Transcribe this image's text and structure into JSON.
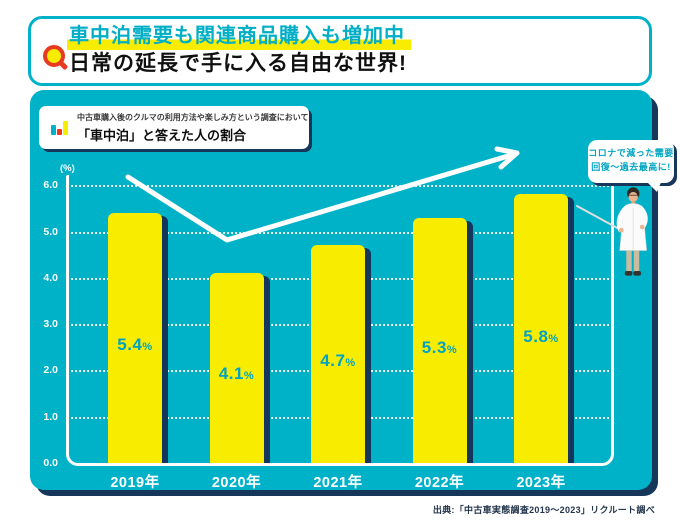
{
  "header": {
    "title_line1": "車中泊需要も関連商品購入も増加中",
    "title_line2": "日常の延長で手に入る自由な世界!",
    "accent_color": "#00b2c8",
    "highlight_color": "#f8ec00",
    "icon": "magnifier-icon"
  },
  "survey_note": {
    "icon": "mini-bar-chart-icon",
    "line1": "中古車購入後のクルマの利用方法や楽しみ方という調査において",
    "line2": "「車中泊」と答えた人の割合"
  },
  "callout": {
    "line1": "コロナで減った需要",
    "line2": "回復〜過去最高に!"
  },
  "source": "出典:「中古車実態調査2019〜2023」リクルート調べ",
  "chart_data": {
    "type": "bar",
    "title": "「車中泊」と答えた人の割合",
    "categories": [
      "2019年",
      "2020年",
      "2021年",
      "2022年",
      "2023年"
    ],
    "values": [
      5.4,
      4.1,
      4.7,
      5.3,
      5.8
    ],
    "unit": "%",
    "y_axis_unit_label": "(%)",
    "y_ticks": [
      "6.0",
      "5.0",
      "4.0",
      "3.0",
      "2.0",
      "1.0",
      "0.0"
    ],
    "ylim": [
      0,
      6.2
    ],
    "grid": "horizontal-dotted",
    "legend": "none",
    "bar_color": "#f8ec00",
    "background_color": "#00b2c8",
    "shadow_color": "#16375a",
    "annotation": "white V-shaped trend arrow dipping at 2020 then rising past 2023"
  }
}
